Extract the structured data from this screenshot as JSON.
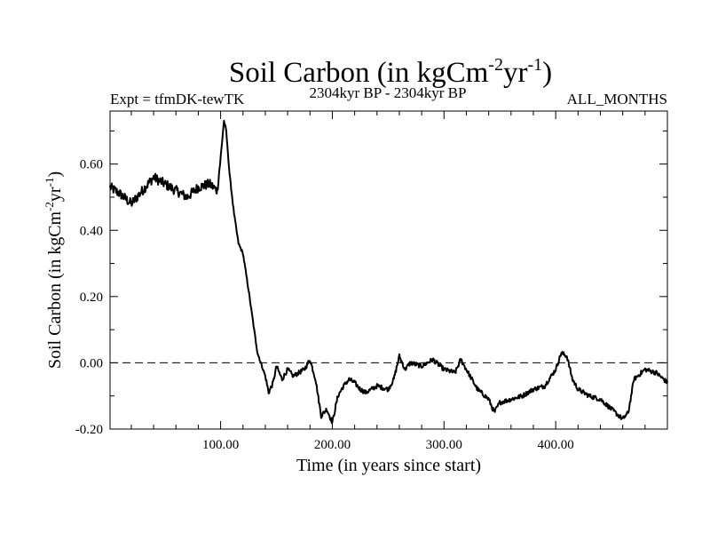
{
  "chart_data": {
    "type": "line",
    "title_main": "Soil Carbon (in kgCm",
    "title_sup1": "-2",
    "title_mid": "yr",
    "title_sup2": "-1",
    "title_end": ")",
    "subtitle_left": "Expt = tfmDK-tewTK",
    "subtitle_center": "2304kyr BP - 2304kyr BP",
    "subtitle_right": "ALL_MONTHS",
    "xlabel": "Time (in years since start)",
    "ylabel_main": "Soil Carbon (in kgCm",
    "ylabel_sup1": "-2",
    "ylabel_mid": "yr",
    "ylabel_sup2": "-1",
    "ylabel_end": ")",
    "xlim": [
      1,
      500
    ],
    "ylim": [
      -0.2,
      0.76
    ],
    "x_ticks": [
      100,
      200,
      300,
      400
    ],
    "x_tick_labels": [
      "100.00",
      "200.00",
      "300.00",
      "400.00"
    ],
    "y_ticks": [
      -0.2,
      0.0,
      0.2,
      0.4,
      0.6
    ],
    "y_tick_labels": [
      "-0.20",
      "0.00",
      "0.20",
      "0.40",
      "0.60"
    ],
    "reference_line": {
      "y": 0.0,
      "style": "dashed"
    },
    "series": [
      {
        "name": "Soil Carbon",
        "x": [
          1,
          10,
          20,
          30,
          40,
          50,
          60,
          70,
          80,
          90,
          97,
          100,
          103,
          105,
          108,
          112,
          116,
          120,
          125,
          130,
          133,
          136,
          140,
          143,
          147,
          150,
          155,
          160,
          165,
          170,
          175,
          180,
          185,
          190,
          195,
          200,
          205,
          210,
          215,
          220,
          225,
          230,
          240,
          250,
          255,
          260,
          265,
          270,
          280,
          290,
          300,
          310,
          315,
          320,
          330,
          340,
          345,
          350,
          360,
          370,
          380,
          390,
          400,
          405,
          410,
          415,
          420,
          430,
          440,
          450,
          460,
          465,
          470,
          480,
          490,
          500
        ],
        "y": [
          0.53,
          0.51,
          0.48,
          0.52,
          0.56,
          0.54,
          0.52,
          0.5,
          0.53,
          0.54,
          0.52,
          0.62,
          0.73,
          0.7,
          0.57,
          0.45,
          0.36,
          0.33,
          0.22,
          0.1,
          0.03,
          0.0,
          -0.04,
          -0.09,
          -0.06,
          -0.01,
          -0.05,
          -0.02,
          -0.04,
          -0.03,
          -0.02,
          0.01,
          -0.05,
          -0.16,
          -0.14,
          -0.18,
          -0.1,
          -0.07,
          -0.05,
          -0.06,
          -0.08,
          -0.09,
          -0.07,
          -0.08,
          -0.05,
          0.02,
          -0.02,
          0.0,
          -0.01,
          0.01,
          -0.02,
          -0.03,
          0.01,
          -0.02,
          -0.08,
          -0.11,
          -0.15,
          -0.12,
          -0.11,
          -0.1,
          -0.08,
          -0.07,
          -0.02,
          0.03,
          0.02,
          -0.05,
          -0.08,
          -0.1,
          -0.11,
          -0.14,
          -0.17,
          -0.15,
          -0.05,
          -0.02,
          -0.03,
          -0.06
        ]
      }
    ]
  }
}
